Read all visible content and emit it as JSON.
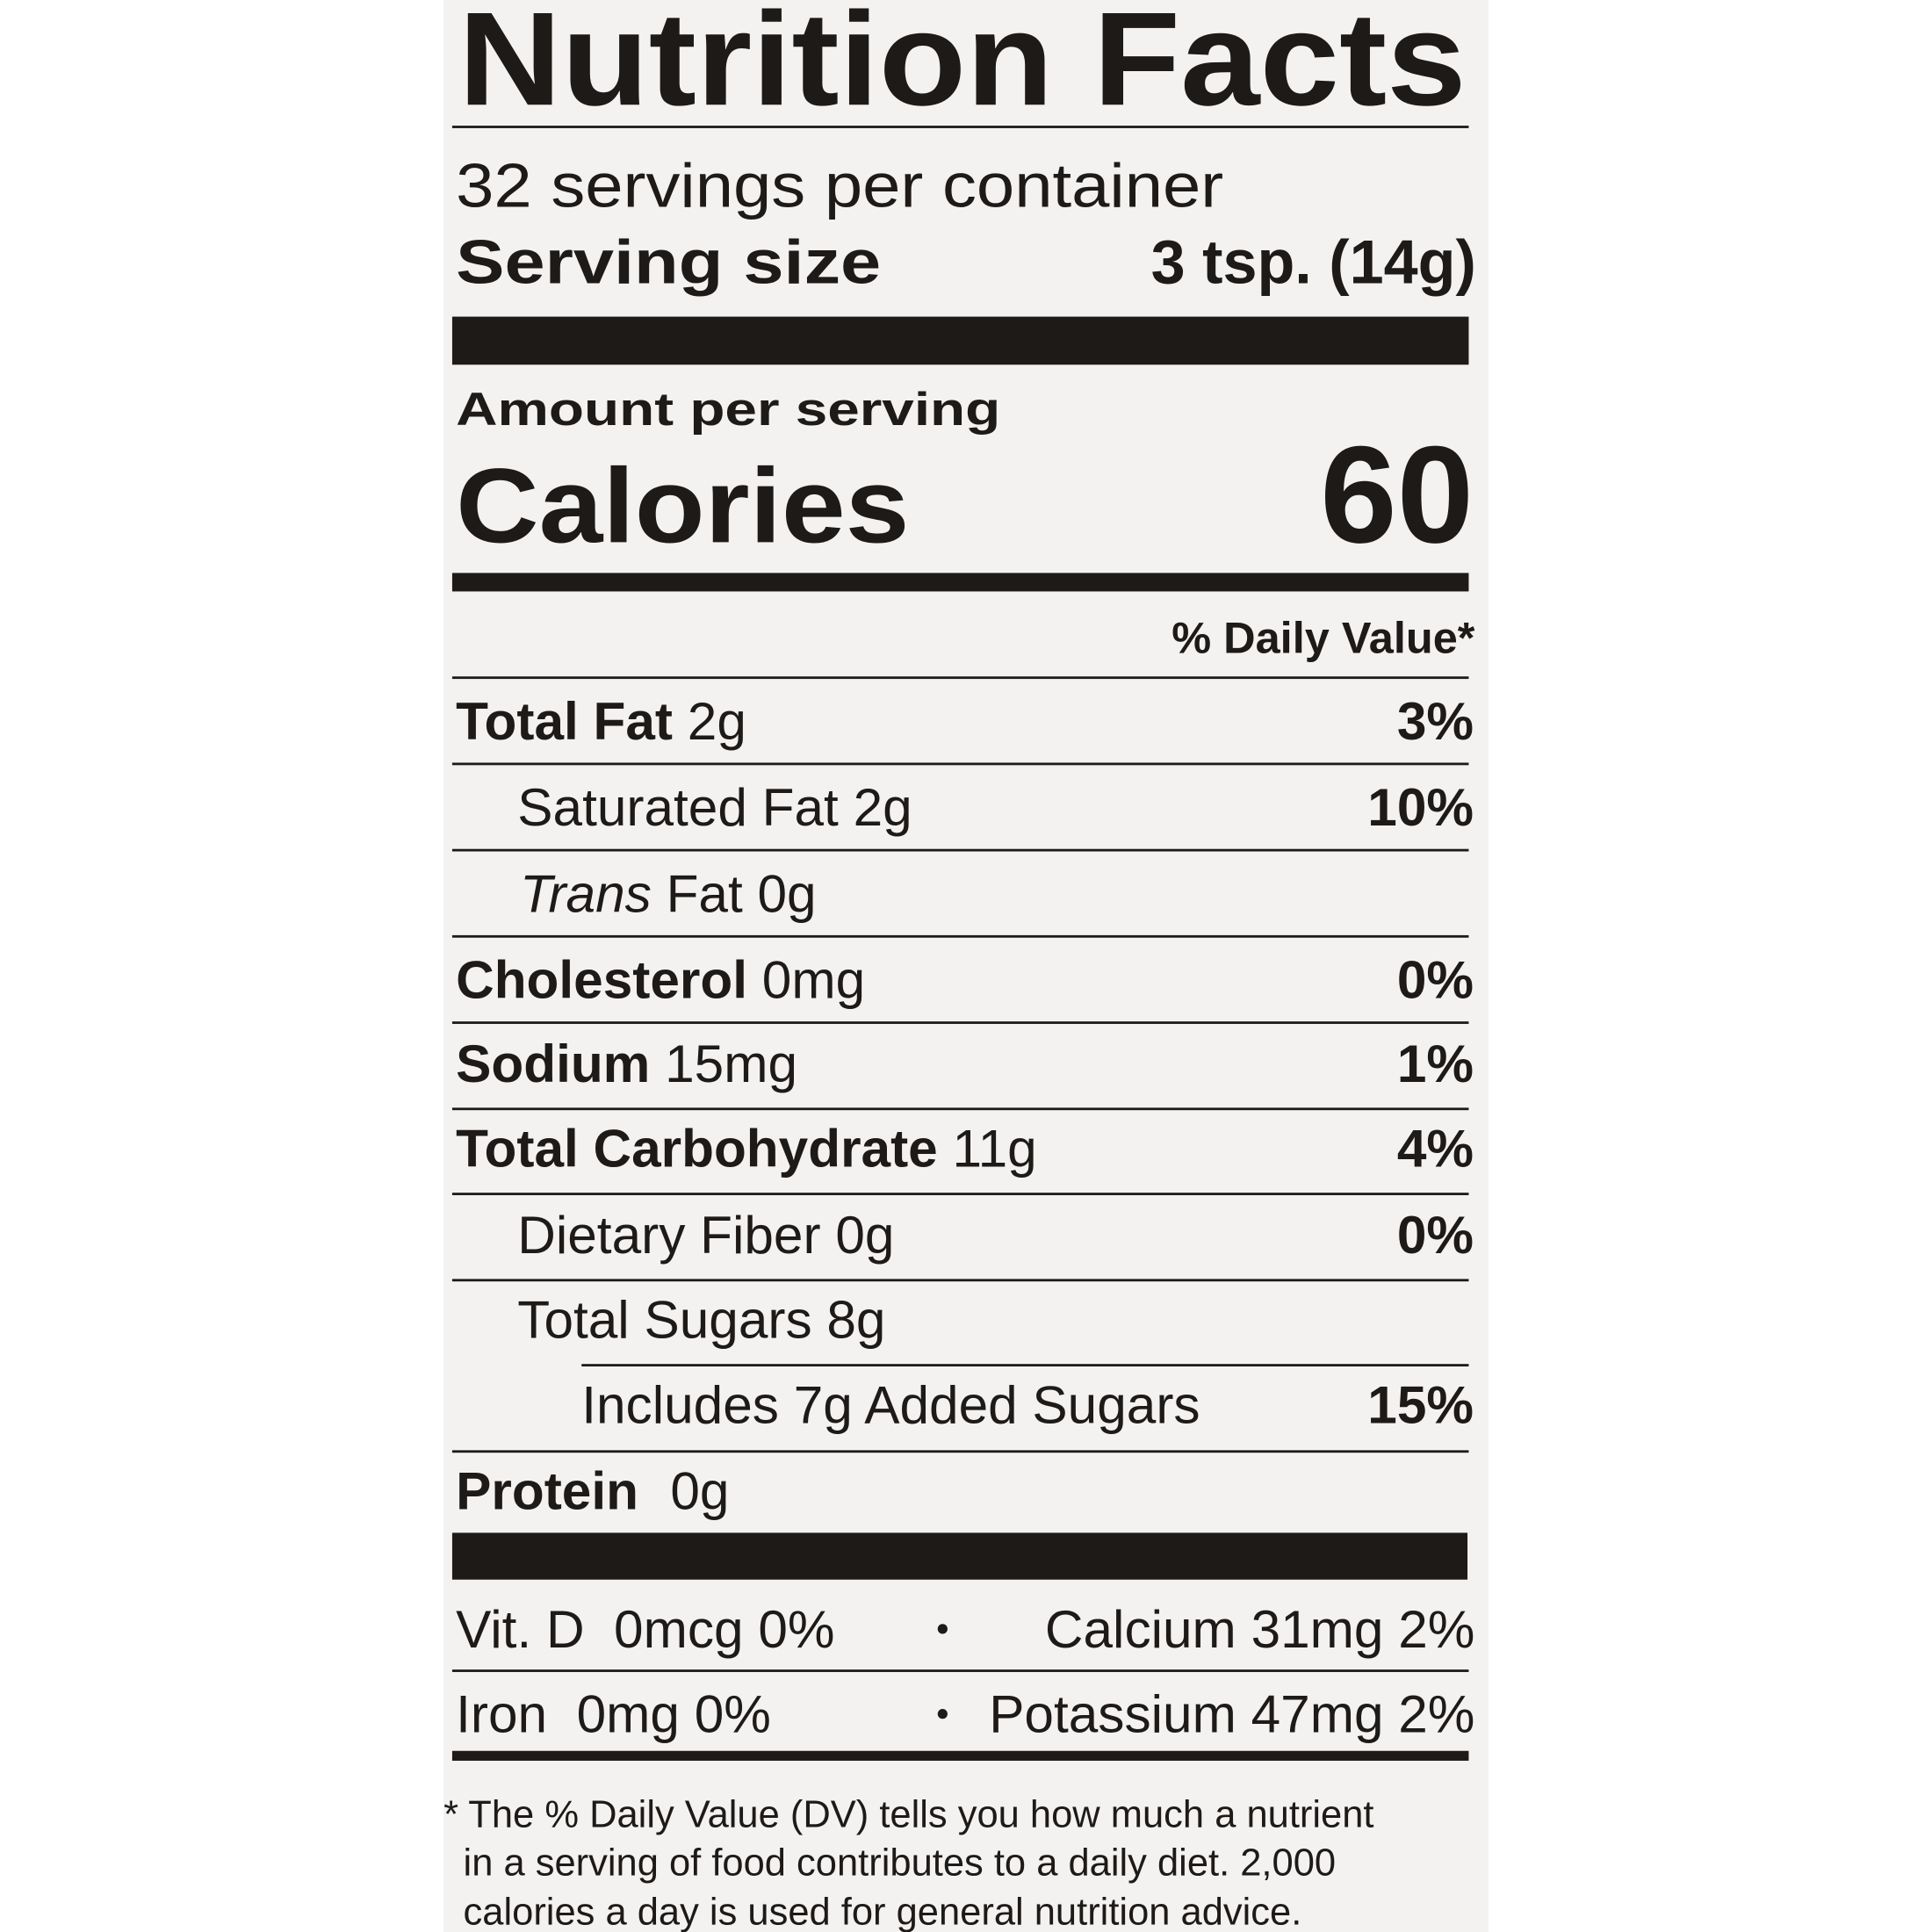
{
  "title": "Nutrition Facts",
  "servings_per_container": "32 servings per container",
  "serving_size": {
    "label": "Serving size",
    "value": "3 tsp. (14g)"
  },
  "amount_per_serving": "Amount per serving",
  "calories": {
    "label": "Calories",
    "value": "60"
  },
  "daily_value_header": "% Daily Value*",
  "nutrients": [
    {
      "name": "Total Fat",
      "amount": "2g",
      "dv": "3%"
    },
    {
      "name": "Saturated Fat 2g",
      "dv": "10%"
    },
    {
      "name": "Trans",
      "amount": "Fat 0g"
    },
    {
      "name": "Cholesterol",
      "amount": "0mg",
      "dv": "0%"
    },
    {
      "name": "Sodium",
      "amount": "15mg",
      "dv": "1%"
    },
    {
      "name": "Total Carbohydrate",
      "amount": "11g",
      "dv": "4%"
    },
    {
      "name": "Dietary Fiber 0g",
      "dv": "0%"
    },
    {
      "name": "Total Sugars 8g"
    },
    {
      "name": "Includes 7g Added Sugars",
      "dv": "15%"
    },
    {
      "name": "Protein",
      "amount": "0g"
    }
  ],
  "vitamins": [
    {
      "left": "Vit. D  0mcg 0%",
      "right": "Calcium 31mg 2%"
    },
    {
      "left": "Iron  0mg 0%",
      "right": "Potassium 47mg 2%"
    }
  ],
  "footnote": [
    "* The % Daily Value (DV) tells you how much a nutrient",
    "in a serving of food contributes to a daily diet. 2,000",
    "calories a day is used for general nutrition advice."
  ]
}
